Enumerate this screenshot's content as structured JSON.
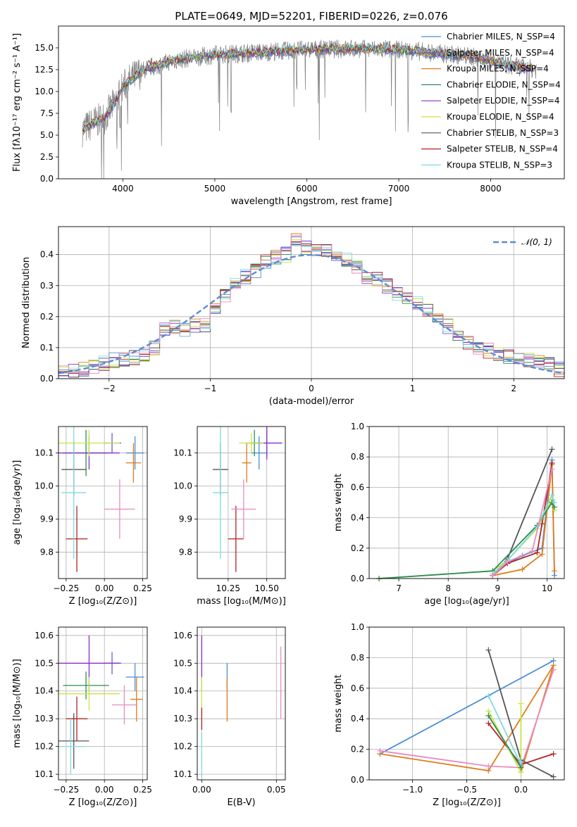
{
  "chart_data": [
    {
      "type": "line",
      "title": "PLATE=0649, MJD=52201, FIBERID=0226, z=0.076",
      "xlabel": "wavelength [Angstrom, rest frame]",
      "ylabel": "Flux [fλ10⁻¹⁷ erg cm⁻² s⁻¹ A⁻¹]",
      "xlim": [
        3300,
        8800
      ],
      "ylim": [
        0,
        17.5
      ],
      "xticks": [
        "4000",
        "5000",
        "6000",
        "7000",
        "8000"
      ],
      "yticks": [
        "0.0",
        "2.5",
        "5.0",
        "7.5",
        "10.0",
        "12.5",
        "15.0"
      ],
      "legend_position": "right",
      "continuum": {
        "x": [
          3550,
          3700,
          3800,
          3900,
          4000,
          4100,
          4200,
          4300,
          4400,
          4500,
          4700,
          5000,
          5500,
          6000,
          6500,
          7000,
          7400,
          7800,
          8200,
          8500
        ],
        "y": [
          5.5,
          6.5,
          7.0,
          8.5,
          10.5,
          11.5,
          12.3,
          12.8,
          13.0,
          13.4,
          13.8,
          14.2,
          14.5,
          14.8,
          14.9,
          14.8,
          14.4,
          14.0,
          13.0,
          12.5
        ]
      },
      "series": [
        {
          "name": "Chabrier MILES, N_SSP=4",
          "color": "#4a8fd6"
        },
        {
          "name": "Salpeter MILES, N_SSP=4",
          "color": "#6a5acd"
        },
        {
          "name": "Kroupa MILES, N_SSP=4",
          "color": "#e07b1a"
        },
        {
          "name": "Chabrier ELODIE, N_SSP=4",
          "color": "#2e8b57"
        },
        {
          "name": "Salpeter ELODIE, N_SSP=4",
          "color": "#8b2fc9"
        },
        {
          "name": "Kroupa ELODIE, N_SSP=4",
          "color": "#c8e640"
        },
        {
          "name": "Chabrier STELIB, N_SSP=3",
          "color": "#555555"
        },
        {
          "name": "Salpeter STELIB, N_SSP=4",
          "color": "#b22222"
        },
        {
          "name": "Kroupa STELIB, N_SSP=3",
          "color": "#7fdbe0"
        }
      ]
    },
    {
      "type": "line",
      "xlabel": "(data-model)/error",
      "ylabel": "Normed distribution",
      "xlim": [
        -2.5,
        2.5
      ],
      "ylim": [
        0,
        0.49
      ],
      "xticks": [
        "−2",
        "−1",
        "0",
        "1",
        "2"
      ],
      "yticks": [
        "0.0",
        "0.1",
        "0.2",
        "0.3",
        "0.4"
      ],
      "legend": "𝒩(0, 1)",
      "legend_position": "top-right",
      "series": [
        {
          "name": "normal",
          "x": [
            -2.5,
            -2.0,
            -1.5,
            -1.0,
            -0.5,
            0.0,
            0.5,
            1.0,
            1.5,
            2.0,
            2.5
          ],
          "y": [
            0.018,
            0.054,
            0.13,
            0.242,
            0.352,
            0.399,
            0.352,
            0.242,
            0.13,
            0.054,
            0.018
          ]
        }
      ],
      "histogram_centers": [
        -2.45,
        -2.35,
        -2.25,
        -2.15,
        -2.05,
        -1.95,
        -1.85,
        -1.75,
        -1.65,
        -1.55,
        -1.45,
        -1.35,
        -1.25,
        -1.15,
        -1.05,
        -0.95,
        -0.85,
        -0.75,
        -0.65,
        -0.55,
        -0.45,
        -0.35,
        -0.25,
        -0.15,
        -0.05,
        0.05,
        0.15,
        0.25,
        0.35,
        0.45,
        0.55,
        0.65,
        0.75,
        0.85,
        0.95,
        1.05,
        1.15,
        1.25,
        1.35,
        1.45,
        1.55,
        1.65,
        1.75,
        1.85,
        1.95,
        2.05,
        2.15,
        2.25,
        2.35,
        2.45
      ],
      "histogram_base": [
        0.02,
        0.025,
        0.03,
        0.04,
        0.05,
        0.06,
        0.065,
        0.07,
        0.08,
        0.1,
        0.16,
        0.17,
        0.16,
        0.17,
        0.17,
        0.23,
        0.27,
        0.3,
        0.33,
        0.35,
        0.38,
        0.39,
        0.4,
        0.45,
        0.42,
        0.42,
        0.41,
        0.4,
        0.38,
        0.36,
        0.33,
        0.32,
        0.3,
        0.27,
        0.26,
        0.24,
        0.22,
        0.2,
        0.17,
        0.14,
        0.12,
        0.1,
        0.09,
        0.08,
        0.07,
        0.06,
        0.06,
        0.05,
        0.05,
        0.03
      ]
    },
    {
      "type": "scatter",
      "xlabel": "Z [log₁₀(Z/Z⊙)]",
      "ylabel": "age  [log₁₀(age/yr)]",
      "xlim": [
        -0.3,
        0.28
      ],
      "ylim": [
        9.72,
        10.18
      ],
      "xticks": [
        "−0.25",
        "0.00",
        "0.25"
      ],
      "yticks": [
        "9.8",
        "9.9",
        "10.0",
        "10.1"
      ],
      "points": [
        {
          "color": "#4a8fd6",
          "x": 0.2,
          "y": 10.1,
          "xerr": 0.06,
          "yerr": 0.05
        },
        {
          "color": "#6a5acd",
          "x": 0.05,
          "y": 10.13,
          "xerr": 0.06,
          "yerr": 0.03
        },
        {
          "color": "#e07b1a",
          "x": 0.19,
          "y": 10.07,
          "xerr": 0.05,
          "yerr": 0.06
        },
        {
          "color": "#2e8b57",
          "x": -0.12,
          "y": 10.1,
          "xerr": 0.15,
          "yerr": 0.07
        },
        {
          "color": "#8b2fc9",
          "x": -0.1,
          "y": 10.1,
          "xerr": 0.2,
          "yerr": 0.05
        },
        {
          "color": "#c8e640",
          "x": -0.1,
          "y": 10.13,
          "xerr": 0.2,
          "yerr": 0.04
        },
        {
          "color": "#555555",
          "x": -0.2,
          "y": 10.05,
          "xerr": 0.08,
          "yerr": 0.08
        },
        {
          "color": "#b22222",
          "x": -0.18,
          "y": 9.84,
          "xerr": 0.07,
          "yerr": 0.1
        },
        {
          "color": "#7fdbe0",
          "x": -0.2,
          "y": 9.98,
          "xerr": 0.08,
          "yerr": 0.2
        },
        {
          "color": "#e88bbf",
          "x": 0.1,
          "y": 9.93,
          "xerr": 0.1,
          "yerr": 0.09
        }
      ]
    },
    {
      "type": "scatter",
      "xlabel": "mass [log₁₀(M/M⊙)]",
      "xlim": [
        10.05,
        10.62
      ],
      "ylim": [
        9.72,
        10.18
      ],
      "xticks": [
        "10.25",
        "10.50"
      ],
      "yticks": [
        "9.8",
        "9.9",
        "10.0",
        "10.1"
      ],
      "points": [
        {
          "color": "#4a8fd6",
          "x": 10.45,
          "y": 10.1,
          "xerr": 0.05,
          "yerr": 0.05
        },
        {
          "color": "#6a5acd",
          "x": 10.5,
          "y": 10.13,
          "xerr": 0.1,
          "yerr": 0.04
        },
        {
          "color": "#e07b1a",
          "x": 10.37,
          "y": 10.07,
          "xerr": 0.03,
          "yerr": 0.06
        },
        {
          "color": "#2e8b57",
          "x": 10.42,
          "y": 10.13,
          "xerr": 0.05,
          "yerr": 0.04
        },
        {
          "color": "#8b2fc9",
          "x": 10.5,
          "y": 10.13,
          "xerr": 0.1,
          "yerr": 0.05
        },
        {
          "color": "#c8e640",
          "x": 10.4,
          "y": 10.13,
          "xerr": 0.08,
          "yerr": 0.03
        },
        {
          "color": "#555555",
          "x": 10.2,
          "y": 10.05,
          "xerr": 0.05,
          "yerr": 0.08
        },
        {
          "color": "#b22222",
          "x": 10.3,
          "y": 9.84,
          "xerr": 0.05,
          "yerr": 0.1
        },
        {
          "color": "#7fdbe0",
          "x": 10.2,
          "y": 9.98,
          "xerr": 0.05,
          "yerr": 0.2
        },
        {
          "color": "#e88bbf",
          "x": 10.35,
          "y": 9.93,
          "xerr": 0.08,
          "yerr": 0.09
        }
      ]
    },
    {
      "type": "line",
      "xlabel": "age  [log₁₀(age/yr)]",
      "ylabel": "mass weight",
      "xlim": [
        6.4,
        10.35
      ],
      "ylim": [
        0,
        1.0
      ],
      "xticks": [
        "7",
        "8",
        "9",
        "10"
      ],
      "yticks": [
        "0.0",
        "0.2",
        "0.4",
        "0.6",
        "0.8",
        "1.0"
      ],
      "series": [
        {
          "color": "#4a8fd6",
          "x": [
            8.9,
            9.2,
            9.5,
            9.9,
            10.1,
            10.15
          ],
          "y": [
            0.02,
            0.1,
            0.15,
            0.2,
            0.78,
            0.02
          ]
        },
        {
          "color": "#e07b1a",
          "x": [
            8.9,
            9.5,
            9.9,
            10.1,
            10.15
          ],
          "y": [
            0.02,
            0.06,
            0.16,
            0.75,
            0.05
          ]
        },
        {
          "color": "#555555",
          "x": [
            8.9,
            9.2,
            10.1
          ],
          "y": [
            0.02,
            0.13,
            0.85
          ]
        },
        {
          "color": "#b22222",
          "x": [
            8.9,
            9.2,
            9.8,
            9.9,
            10.1
          ],
          "y": [
            0.02,
            0.1,
            0.17,
            0.36,
            0.76
          ]
        },
        {
          "color": "#c8e640",
          "x": [
            6.6,
            8.9,
            9.2,
            9.8,
            10.1,
            10.15
          ],
          "y": [
            0.0,
            0.05,
            0.12,
            0.33,
            0.52,
            0.45
          ]
        },
        {
          "color": "#2e8b57",
          "x": [
            6.6,
            8.9,
            9.8,
            10.1,
            10.15
          ],
          "y": [
            0.0,
            0.05,
            0.35,
            0.5,
            0.47
          ]
        },
        {
          "color": "#7fdbe0",
          "x": [
            8.9,
            9.2,
            9.8,
            10.1,
            10.15
          ],
          "y": [
            0.03,
            0.12,
            0.34,
            0.55,
            0.5
          ]
        },
        {
          "color": "#e88bbf",
          "x": [
            8.9,
            9.2,
            9.7,
            10.1
          ],
          "y": [
            0.02,
            0.11,
            0.18,
            0.72
          ]
        }
      ]
    },
    {
      "type": "scatter",
      "xlabel": "Z [log₁₀(Z/Z⊙)]",
      "ylabel": "mass [log₁₀(M/M⊙)]",
      "xlim": [
        -0.3,
        0.28
      ],
      "ylim": [
        10.08,
        10.63
      ],
      "xticks": [
        "−0.25",
        "0.00",
        "0.25"
      ],
      "yticks": [
        "10.1",
        "10.2",
        "10.3",
        "10.4",
        "10.5",
        "10.6"
      ],
      "points": [
        {
          "color": "#4a8fd6",
          "x": 0.2,
          "y": 10.45,
          "xerr": 0.06,
          "yerr": 0.05
        },
        {
          "color": "#6a5acd",
          "x": 0.05,
          "y": 10.5,
          "xerr": 0.06,
          "yerr": 0.04
        },
        {
          "color": "#e07b1a",
          "x": 0.21,
          "y": 10.37,
          "xerr": 0.04,
          "yerr": 0.08
        },
        {
          "color": "#2e8b57",
          "x": -0.12,
          "y": 10.42,
          "xerr": 0.15,
          "yerr": 0.05
        },
        {
          "color": "#8b2fc9",
          "x": -0.1,
          "y": 10.5,
          "xerr": 0.2,
          "yerr": 0.1
        },
        {
          "color": "#c8e640",
          "x": -0.1,
          "y": 10.39,
          "xerr": 0.2,
          "yerr": 0.06
        },
        {
          "color": "#555555",
          "x": -0.2,
          "y": 10.22,
          "xerr": 0.1,
          "yerr": 0.1
        },
        {
          "color": "#b22222",
          "x": -0.18,
          "y": 10.3,
          "xerr": 0.07,
          "yerr": 0.08
        },
        {
          "color": "#7fdbe0",
          "x": -0.22,
          "y": 10.2,
          "xerr": 0.1,
          "yerr": 0.1
        },
        {
          "color": "#e88bbf",
          "x": 0.13,
          "y": 10.35,
          "xerr": 0.08,
          "yerr": 0.07
        }
      ]
    },
    {
      "type": "scatter",
      "xlabel": "E(B-V)",
      "xlim": [
        -0.003,
        0.056
      ],
      "ylim": [
        10.08,
        10.63
      ],
      "xticks": [
        "0.00",
        "0.05"
      ],
      "yticks": [
        "10.1",
        "10.2",
        "10.3",
        "10.4",
        "10.5",
        "10.6"
      ],
      "points": [
        {
          "color": "#4a8fd6",
          "x": 0.017,
          "y": 10.45,
          "yerr": 0.05
        },
        {
          "color": "#e07b1a",
          "x": 0.017,
          "y": 10.37,
          "yerr": 0.08
        },
        {
          "color": "#8b2fc9",
          "x": 0.0,
          "y": 10.5,
          "yerr": 0.1
        },
        {
          "color": "#c8e640",
          "x": 0.0,
          "y": 10.38,
          "yerr": 0.07
        },
        {
          "color": "#b22222",
          "x": 0.0,
          "y": 10.3,
          "yerr": 0.04
        },
        {
          "color": "#7fdbe0",
          "x": 0.0,
          "y": 10.17,
          "yerr": 0.08
        },
        {
          "color": "#e88bbf",
          "x": 0.053,
          "y": 10.43,
          "yerr": 0.13
        }
      ]
    },
    {
      "type": "line",
      "xlabel": "Z [log₁₀(Z/Z⊙)]",
      "ylabel": "mass weight",
      "xlim": [
        -1.4,
        0.4
      ],
      "ylim": [
        0,
        1.0
      ],
      "xticks": [
        "−1.0",
        "−0.5",
        "0.0"
      ],
      "yticks": [
        "0.0",
        "0.2",
        "0.4",
        "0.6",
        "0.8",
        "1.0"
      ],
      "series": [
        {
          "color": "#4a8fd6",
          "x": [
            -1.3,
            0.3
          ],
          "y": [
            0.17,
            0.78
          ]
        },
        {
          "color": "#e07b1a",
          "x": [
            -1.3,
            -0.3,
            0.3,
            0.0
          ],
          "y": [
            0.17,
            0.06,
            0.75,
            0.05
          ]
        },
        {
          "color": "#e88bbf",
          "x": [
            -1.3,
            -0.3,
            0.0,
            0.3
          ],
          "y": [
            0.19,
            0.09,
            0.08,
            0.72
          ]
        },
        {
          "color": "#555555",
          "x": [
            -0.3,
            0.0,
            0.3
          ],
          "y": [
            0.85,
            0.13,
            0.02
          ]
        },
        {
          "color": "#b22222",
          "x": [
            -0.3,
            0.0,
            0.3
          ],
          "y": [
            0.37,
            0.1,
            0.17
          ]
        },
        {
          "color": "#c8e640",
          "x": [
            -0.3,
            0.0,
            0.0
          ],
          "y": [
            0.45,
            0.05,
            0.5
          ]
        },
        {
          "color": "#7fdbe0",
          "x": [
            -0.3,
            0.0,
            0.0
          ],
          "y": [
            0.55,
            0.1,
            0.12
          ]
        },
        {
          "color": "#2e8b57",
          "x": [
            -0.3,
            0.0
          ],
          "y": [
            0.42,
            0.08
          ]
        }
      ]
    }
  ]
}
